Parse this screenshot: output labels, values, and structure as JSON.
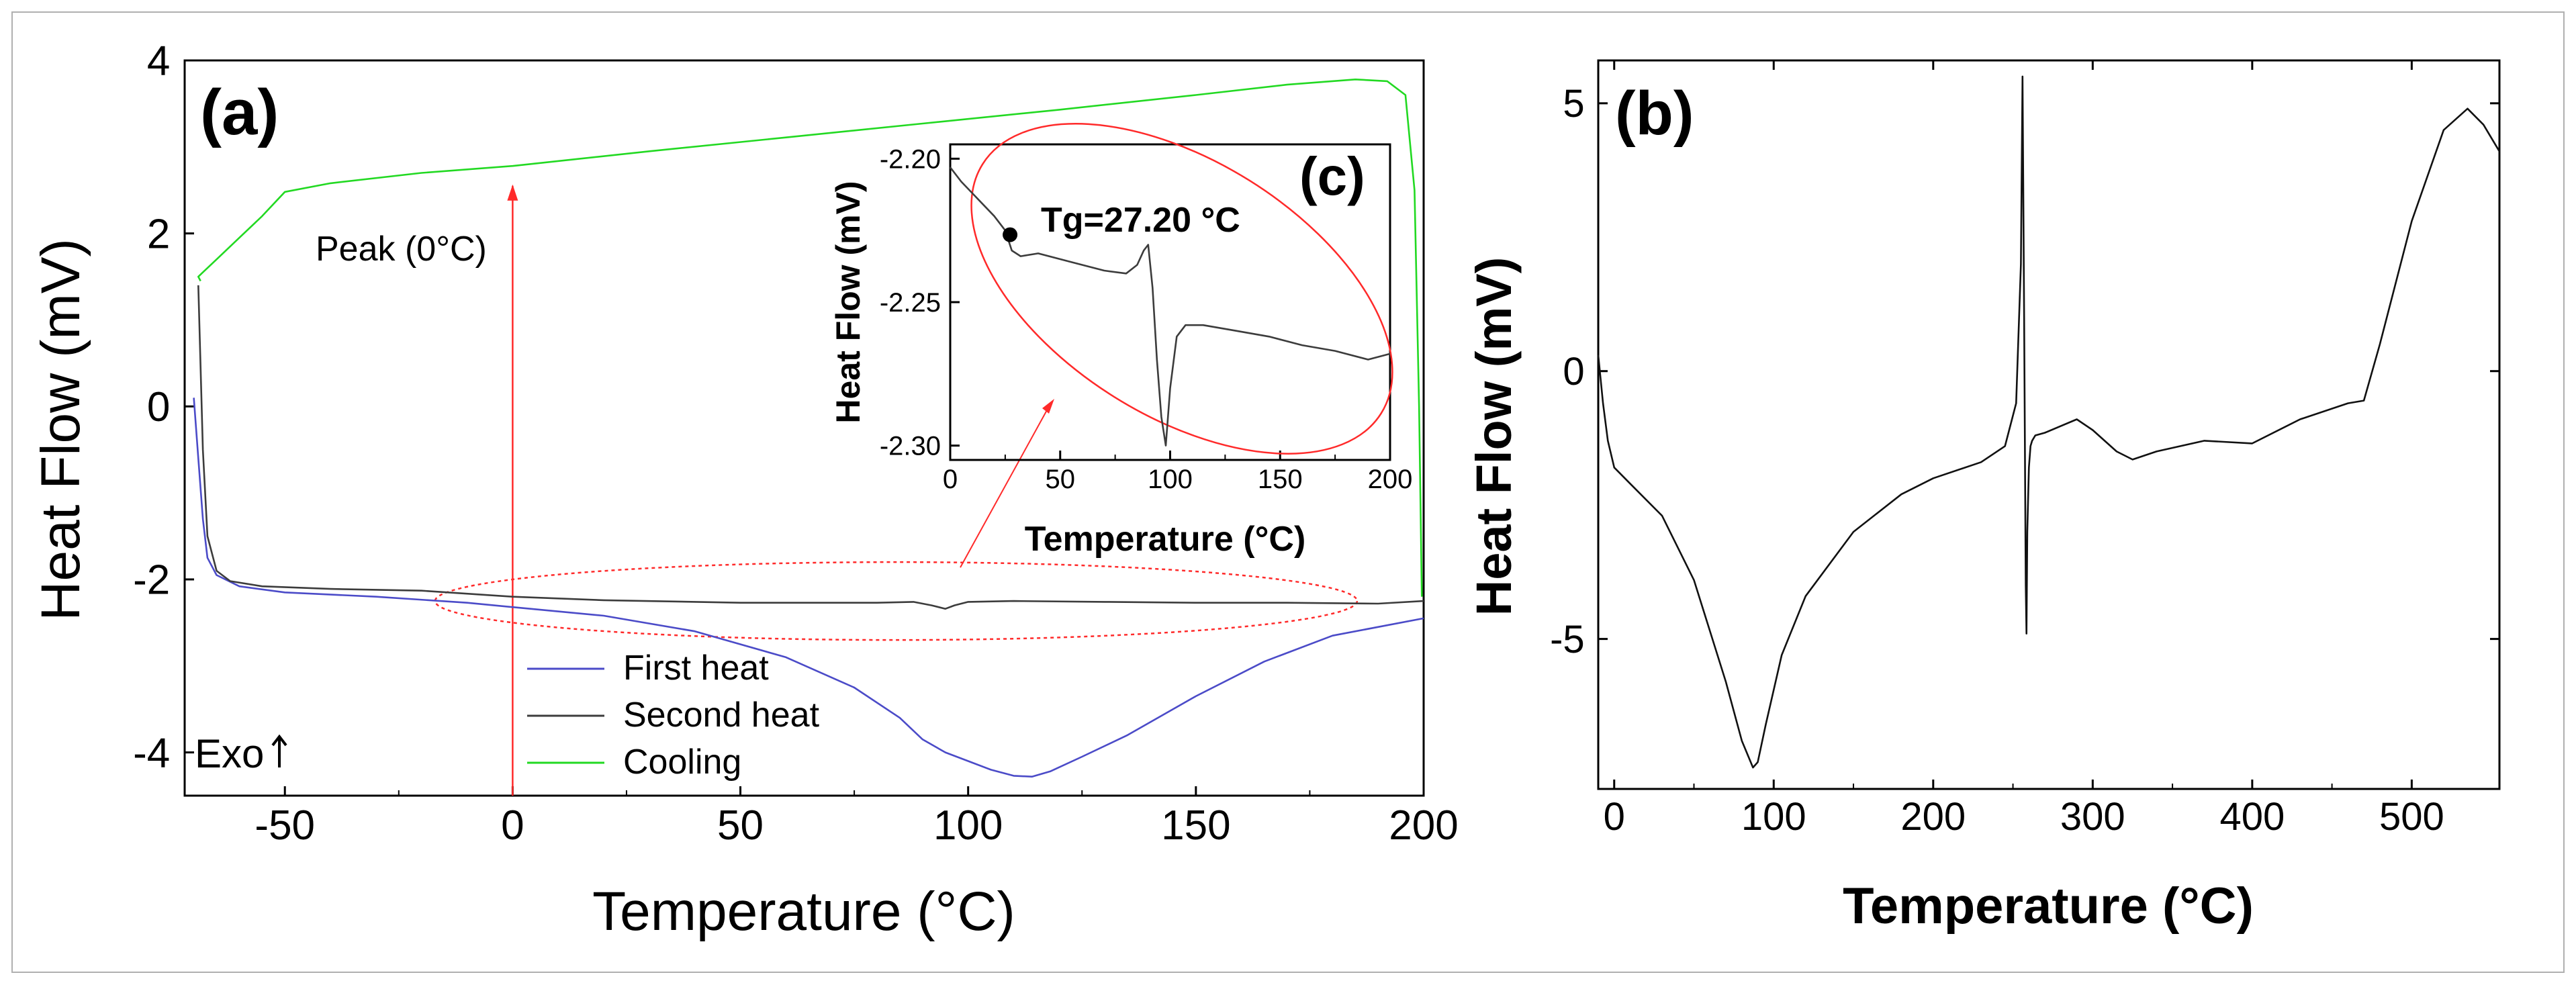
{
  "colors": {
    "first_heat": "#4b4bc8",
    "second_heat": "#3c3c3c",
    "cooling": "#22d922",
    "annotation": "#ff2a2a",
    "axis": "#000000"
  },
  "chart_data": [
    {
      "id": "a",
      "type": "line",
      "panel_label": "(a)",
      "xlabel": "Temperature (°C)",
      "ylabel": "Heat Flow (mV)",
      "xlim": [
        -72,
        200
      ],
      "ylim": [
        -4.5,
        4
      ],
      "xticks": [
        -50,
        0,
        50,
        100,
        150,
        200
      ],
      "yticks": [
        4,
        2,
        0,
        -2,
        -4
      ],
      "legend": [
        "First heat",
        "Second heat",
        "Cooling"
      ],
      "peak_label": "Peak (0°C)",
      "exo_label": "Exo",
      "series": [
        {
          "name": "First heat",
          "x": [
            -70,
            -69,
            -68,
            -67,
            -65,
            -60,
            -50,
            -30,
            -10,
            0,
            20,
            40,
            60,
            75,
            85,
            90,
            95,
            100,
            105,
            110,
            114,
            118,
            125,
            135,
            150,
            165,
            180,
            200
          ],
          "y": [
            0.1,
            -0.6,
            -1.3,
            -1.75,
            -1.95,
            -2.08,
            -2.15,
            -2.2,
            -2.27,
            -2.32,
            -2.42,
            -2.6,
            -2.9,
            -3.25,
            -3.6,
            -3.85,
            -4.0,
            -4.1,
            -4.2,
            -4.27,
            -4.28,
            -4.22,
            -4.05,
            -3.8,
            -3.35,
            -2.95,
            -2.65,
            -2.45
          ]
        },
        {
          "name": "Second heat",
          "x": [
            -69,
            -68,
            -67,
            -65,
            -62,
            -55,
            -40,
            -20,
            0,
            20,
            50,
            80,
            88,
            92,
            95,
            97,
            100,
            110,
            130,
            150,
            170,
            190,
            200
          ],
          "y": [
            1.4,
            -0.5,
            -1.5,
            -1.9,
            -2.02,
            -2.08,
            -2.11,
            -2.13,
            -2.2,
            -2.24,
            -2.27,
            -2.27,
            -2.26,
            -2.3,
            -2.34,
            -2.3,
            -2.26,
            -2.25,
            -2.26,
            -2.27,
            -2.27,
            -2.28,
            -2.25
          ]
        },
        {
          "name": "Cooling",
          "x": [
            199.6,
            199,
            198,
            196,
            192,
            185,
            170,
            150,
            120,
            90,
            60,
            30,
            0,
            -20,
            -40,
            -50,
            -55,
            -60,
            -65,
            -68,
            -69,
            -68.5
          ],
          "y": [
            -2.2,
            0.0,
            2.5,
            3.6,
            3.76,
            3.78,
            3.72,
            3.6,
            3.43,
            3.27,
            3.11,
            2.95,
            2.78,
            2.7,
            2.58,
            2.48,
            2.2,
            1.95,
            1.7,
            1.55,
            1.5,
            1.45
          ]
        }
      ]
    },
    {
      "id": "c",
      "type": "line",
      "panel_label": "(c)",
      "xlabel": "Temperature (°C)",
      "ylabel": "Heat Flow (mV)",
      "xlim": [
        0,
        200
      ],
      "ylim": [
        -2.305,
        -2.195
      ],
      "xticks": [
        0,
        50,
        100,
        150,
        200
      ],
      "yticks": [
        -2.2,
        -2.25,
        -2.3
      ],
      "ytick_labels": [
        "-2.20",
        "-2.25",
        "-2.30"
      ],
      "tg_label": "Tg=27.20 °C",
      "tg_point": {
        "x": 27.2,
        "y": -2.2265
      },
      "series": [
        {
          "name": "Second heat",
          "x": [
            0,
            5,
            10,
            15,
            20,
            25,
            28,
            32,
            40,
            55,
            70,
            80,
            85,
            88,
            90,
            92,
            94,
            96,
            98,
            100,
            103,
            107,
            115,
            130,
            145,
            160,
            175,
            190,
            200
          ],
          "y": [
            -2.203,
            -2.208,
            -2.212,
            -2.216,
            -2.22,
            -2.225,
            -2.232,
            -2.234,
            -2.233,
            -2.236,
            -2.239,
            -2.24,
            -2.237,
            -2.232,
            -2.23,
            -2.245,
            -2.27,
            -2.29,
            -2.3,
            -2.28,
            -2.262,
            -2.258,
            -2.258,
            -2.26,
            -2.262,
            -2.265,
            -2.267,
            -2.27,
            -2.268
          ]
        }
      ]
    },
    {
      "id": "b",
      "type": "line",
      "panel_label": "(b)",
      "xlabel": "Temperature (°C)",
      "ylabel": "Heat Flow (mV)",
      "xlim": [
        -10,
        555
      ],
      "ylim": [
        -7.8,
        5.8
      ],
      "xticks": [
        0,
        100,
        200,
        300,
        400,
        500
      ],
      "yticks": [
        5,
        0,
        -5
      ],
      "series": [
        {
          "name": "Heat flow",
          "x": [
            -10,
            -7,
            -4,
            0,
            10,
            30,
            50,
            70,
            80,
            87,
            90,
            95,
            105,
            120,
            150,
            180,
            200,
            230,
            245,
            252,
            255,
            256,
            257,
            258,
            258.5,
            259,
            260,
            261,
            262,
            264,
            270,
            290,
            300,
            315,
            325,
            340,
            370,
            400,
            430,
            460,
            470,
            480,
            500,
            520,
            535,
            545,
            555
          ],
          "y": [
            0.3,
            -0.6,
            -1.3,
            -1.8,
            -2.1,
            -2.7,
            -3.9,
            -5.8,
            -6.9,
            -7.4,
            -7.3,
            -6.6,
            -5.3,
            -4.2,
            -3.0,
            -2.3,
            -2.0,
            -1.7,
            -1.4,
            -0.6,
            2.0,
            5.5,
            1.0,
            -4.0,
            -4.9,
            -3.0,
            -1.8,
            -1.4,
            -1.3,
            -1.2,
            -1.15,
            -0.9,
            -1.1,
            -1.5,
            -1.65,
            -1.5,
            -1.3,
            -1.35,
            -0.9,
            -0.6,
            -0.55,
            0.5,
            2.8,
            4.5,
            4.9,
            4.6,
            4.1
          ]
        }
      ]
    }
  ]
}
